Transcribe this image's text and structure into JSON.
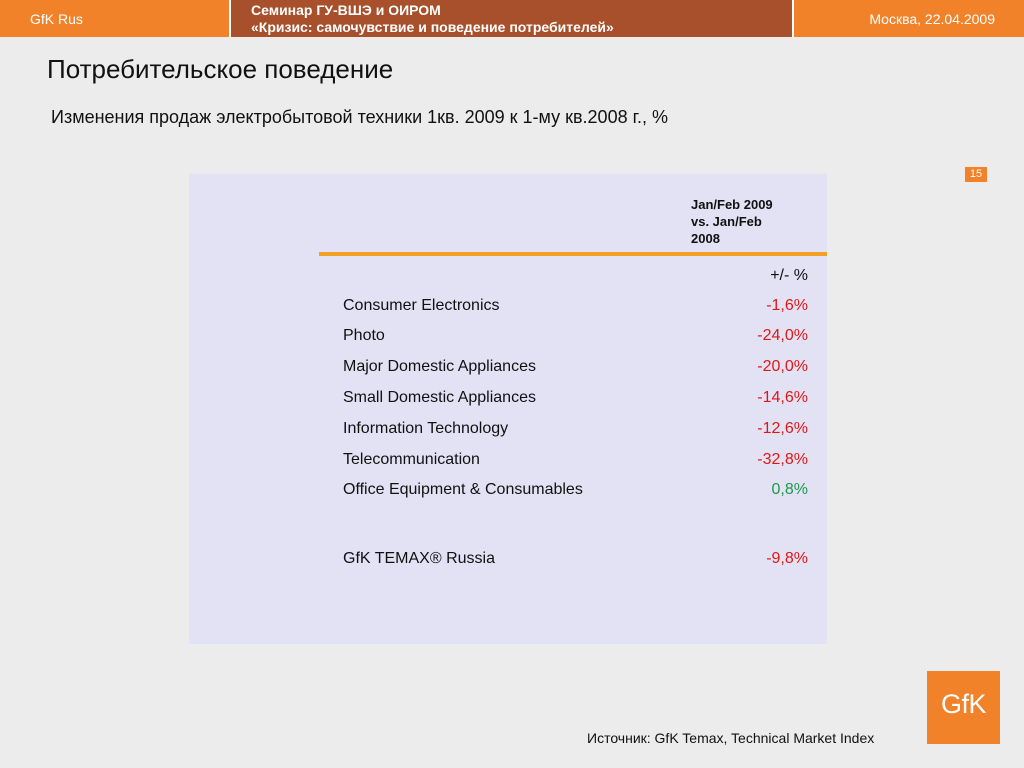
{
  "header": {
    "left": "GfK Rus",
    "center_line1": "Семинар ГУ-ВШЭ и ОИРОМ",
    "center_line2": "«Кризис: самочувствие и поведение потребителей»",
    "right": "Москва, 22.04.2009"
  },
  "page_title": "Потребительское поведение",
  "subtitle": "Изменения продаж электробытовой техники 1кв. 2009 к 1-му кв.2008 г., %",
  "page_number": "15",
  "table": {
    "column_header_line1": "Jan/Feb 2009",
    "column_header_line2": "vs. Jan/Feb",
    "column_header_line3": "2008",
    "unit_label": "+/- %",
    "rows": [
      {
        "label": "Consumer Electronics",
        "value": "-1,6%"
      },
      {
        "label": "Photo",
        "value": "-24,0%"
      },
      {
        "label": "Major Domestic Appliances",
        "value": "-20,0%"
      },
      {
        "label": "Small Domestic Appliances",
        "value": "-14,6%"
      },
      {
        "label": "Information Technology",
        "value": "-12,6%"
      },
      {
        "label": "Telecommunication",
        "value": "-32,8%"
      },
      {
        "label": "Office Equipment & Consumables",
        "value": "0,8%"
      }
    ],
    "total": {
      "label": "GfK TEMAX® Russia",
      "value": "-9,8%"
    }
  },
  "source": "Источник: GfK Temax, Technical Market Index",
  "logo": "GfK",
  "colors": {
    "brand_orange": "#f2822a",
    "header_brown": "#a8502b",
    "negative": "#e01616",
    "positive": "#1a9a4a",
    "panel": "#e2e2f4"
  }
}
